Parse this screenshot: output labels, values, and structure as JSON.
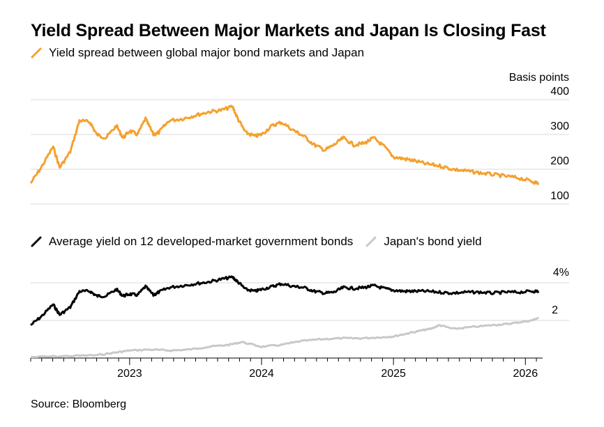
{
  "title": "Yield Spread Between Major Markets and Japan Is Closing Fast",
  "source": "Source: Bloomberg",
  "colors": {
    "spread": "#F4A12E",
    "average": "#000000",
    "japan": "#C8C8C8",
    "grid": "#D9D9D9"
  },
  "chart_data": [
    {
      "type": "line",
      "legend": [
        "Yield spread between global major bond markets and Japan"
      ],
      "ylabel": "Basis points",
      "ylim": [
        100,
        400
      ],
      "yticks": [
        "400",
        "300",
        "200",
        "100"
      ],
      "xlim": [
        2022.25,
        2026.12
      ],
      "series": [
        {
          "name": "Yield spread between global major bond markets and Japan",
          "x": [
            2022.25,
            2022.33,
            2022.42,
            2022.47,
            2022.55,
            2022.62,
            2022.7,
            2022.75,
            2022.82,
            2022.9,
            2022.95,
            2023.0,
            2023.06,
            2023.12,
            2023.18,
            2023.22,
            2023.3,
            2023.4,
            2023.5,
            2023.6,
            2023.7,
            2023.78,
            2023.82,
            2023.88,
            2023.95,
            2024.0,
            2024.08,
            2024.15,
            2024.25,
            2024.32,
            2024.4,
            2024.48,
            2024.55,
            2024.62,
            2024.7,
            2024.78,
            2024.85,
            2024.93,
            2025.0,
            2025.08,
            2025.15,
            2025.25,
            2025.35,
            2025.45,
            2025.55,
            2025.65,
            2025.75,
            2025.85,
            2025.95,
            2026.05,
            2026.1
          ],
          "values": [
            160,
            205,
            265,
            205,
            250,
            340,
            335,
            300,
            290,
            325,
            290,
            310,
            300,
            345,
            300,
            305,
            340,
            345,
            355,
            365,
            370,
            380,
            345,
            305,
            295,
            300,
            325,
            335,
            310,
            295,
            270,
            255,
            270,
            290,
            270,
            275,
            290,
            265,
            235,
            230,
            225,
            215,
            210,
            200,
            195,
            190,
            185,
            180,
            175,
            165,
            160
          ]
        }
      ]
    },
    {
      "type": "line",
      "legend": [
        "Average yield on 12 developed-market government bonds",
        "Japan's bond yield"
      ],
      "ylim": [
        0,
        4.6
      ],
      "yticks": [
        "4%",
        "2"
      ],
      "xlabels": [
        "2023",
        "2024",
        "2025",
        "2026"
      ],
      "xlabel_positions": [
        2023.0,
        2024.0,
        2025.0,
        2026.0
      ],
      "series": [
        {
          "name": "Average yield on 12 developed-market government bonds",
          "x": [
            2022.25,
            2022.33,
            2022.42,
            2022.47,
            2022.55,
            2022.62,
            2022.7,
            2022.75,
            2022.82,
            2022.9,
            2022.95,
            2023.0,
            2023.06,
            2023.12,
            2023.18,
            2023.22,
            2023.3,
            2023.4,
            2023.5,
            2023.6,
            2023.7,
            2023.78,
            2023.82,
            2023.88,
            2023.95,
            2024.0,
            2024.08,
            2024.15,
            2024.25,
            2024.32,
            2024.4,
            2024.48,
            2024.55,
            2024.62,
            2024.7,
            2024.78,
            2024.85,
            2024.93,
            2025.0,
            2025.08,
            2025.15,
            2025.25,
            2025.35,
            2025.45,
            2025.55,
            2025.65,
            2025.75,
            2025.85,
            2025.95,
            2026.05,
            2026.1
          ],
          "values": [
            1.75,
            2.2,
            2.85,
            2.3,
            2.7,
            3.55,
            3.55,
            3.3,
            3.3,
            3.65,
            3.3,
            3.4,
            3.35,
            3.8,
            3.35,
            3.5,
            3.75,
            3.85,
            3.95,
            4.05,
            4.2,
            4.3,
            4.05,
            3.65,
            3.55,
            3.65,
            3.8,
            3.95,
            3.8,
            3.75,
            3.55,
            3.45,
            3.5,
            3.75,
            3.7,
            3.75,
            3.85,
            3.7,
            3.6,
            3.55,
            3.55,
            3.55,
            3.5,
            3.45,
            3.5,
            3.5,
            3.45,
            3.5,
            3.5,
            3.55,
            3.55
          ]
        },
        {
          "name": "Japan's bond yield",
          "x": [
            2022.25,
            2022.5,
            2022.75,
            2022.9,
            2023.0,
            2023.15,
            2023.3,
            2023.45,
            2023.6,
            2023.75,
            2023.85,
            2024.0,
            2024.15,
            2024.3,
            2024.45,
            2024.6,
            2024.75,
            2024.9,
            2025.0,
            2025.1,
            2025.2,
            2025.28,
            2025.35,
            2025.45,
            2025.6,
            2025.75,
            2025.85,
            2025.95,
            2026.05,
            2026.1
          ],
          "values": [
            0.05,
            0.1,
            0.15,
            0.3,
            0.4,
            0.45,
            0.4,
            0.45,
            0.6,
            0.7,
            0.85,
            0.6,
            0.7,
            0.9,
            1.0,
            1.05,
            1.05,
            1.1,
            1.15,
            1.3,
            1.45,
            1.55,
            1.75,
            1.55,
            1.65,
            1.75,
            1.8,
            1.9,
            2.0,
            2.15
          ]
        }
      ]
    }
  ]
}
